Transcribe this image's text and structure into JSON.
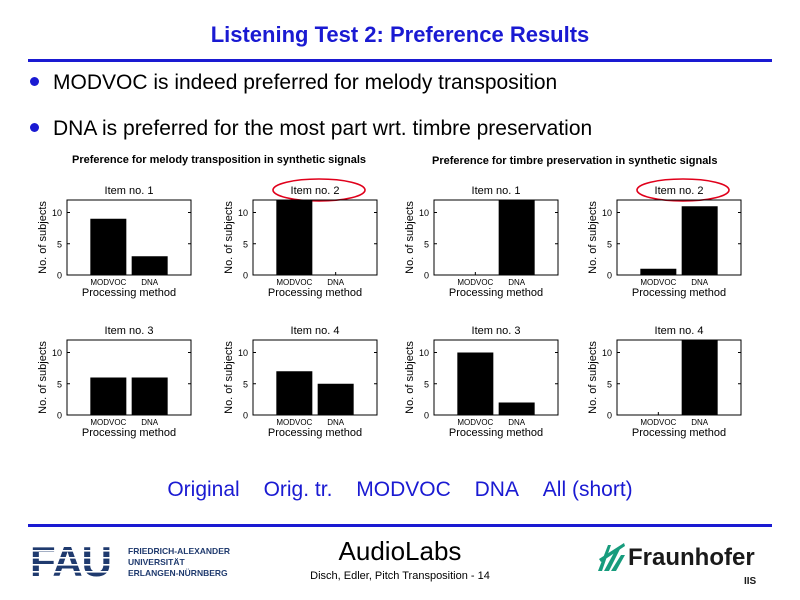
{
  "slide": {
    "title": "Listening Test 2: Preference Results",
    "bullets": [
      "MODVOC is indeed preferred for melody transposition",
      "DNA is preferred for the most part wrt. timbre preservation"
    ],
    "links": [
      "Original",
      "Orig. tr.",
      "MODVOC",
      "DNA",
      "All (short)"
    ],
    "brand": "AudioLabs",
    "footer": "Disch, Edler, Pitch Transposition - 14",
    "fau_logo": "FAU",
    "fau_lines": [
      "FRIEDRICH-ALEXANDER",
      "UNIVERSITÄT",
      "ERLANGEN-NÜRNBERG"
    ],
    "fraunhofer": "Fraunhofer",
    "iis": "IIS",
    "accent_color": "#1a1ad2",
    "highlight_color": "#e0001b"
  },
  "groups": [
    {
      "title": "Preference for melody transposition in synthetic signals"
    },
    {
      "title": "Preference for timbre preservation in synthetic signals"
    }
  ],
  "chart_data": [
    {
      "type": "bar",
      "group": 0,
      "title": "Item no. 1",
      "categories": [
        "MODVOC",
        "DNA"
      ],
      "values": [
        9,
        3
      ],
      "xlabel": "Processing method",
      "ylabel": "No. of subjects",
      "ylim": [
        0,
        12
      ],
      "yticks": [
        0,
        5,
        10
      ],
      "highlighted": false
    },
    {
      "type": "bar",
      "group": 0,
      "title": "Item no. 2",
      "categories": [
        "MODVOC",
        "DNA"
      ],
      "values": [
        12,
        0
      ],
      "xlabel": "Processing method",
      "ylabel": "No. of subjects",
      "ylim": [
        0,
        12
      ],
      "yticks": [
        0,
        5,
        10
      ],
      "highlighted": true
    },
    {
      "type": "bar",
      "group": 1,
      "title": "Item no. 1",
      "categories": [
        "MODVOC",
        "DNA"
      ],
      "values": [
        0,
        12
      ],
      "xlabel": "Processing method",
      "ylabel": "No. of subjects",
      "ylim": [
        0,
        12
      ],
      "yticks": [
        0,
        5,
        10
      ],
      "highlighted": false
    },
    {
      "type": "bar",
      "group": 1,
      "title": "Item no. 2",
      "categories": [
        "MODVOC",
        "DNA"
      ],
      "values": [
        1,
        11
      ],
      "xlabel": "Processing method",
      "ylabel": "No. of subjects",
      "ylim": [
        0,
        12
      ],
      "yticks": [
        0,
        5,
        10
      ],
      "highlighted": true
    },
    {
      "type": "bar",
      "group": 0,
      "title": "Item no. 3",
      "categories": [
        "MODVOC",
        "DNA"
      ],
      "values": [
        6,
        6
      ],
      "xlabel": "Processing method",
      "ylabel": "No. of subjects",
      "ylim": [
        0,
        12
      ],
      "yticks": [
        0,
        5,
        10
      ],
      "highlighted": false
    },
    {
      "type": "bar",
      "group": 0,
      "title": "Item no. 4",
      "categories": [
        "MODVOC",
        "DNA"
      ],
      "values": [
        7,
        5
      ],
      "xlabel": "Processing method",
      "ylabel": "No. of subjects",
      "ylim": [
        0,
        12
      ],
      "yticks": [
        0,
        5,
        10
      ],
      "highlighted": false
    },
    {
      "type": "bar",
      "group": 1,
      "title": "Item no. 3",
      "categories": [
        "MODVOC",
        "DNA"
      ],
      "values": [
        10,
        2
      ],
      "xlabel": "Processing method",
      "ylabel": "No. of subjects",
      "ylim": [
        0,
        12
      ],
      "yticks": [
        0,
        5,
        10
      ],
      "highlighted": false
    },
    {
      "type": "bar",
      "group": 1,
      "title": "Item no. 4",
      "categories": [
        "MODVOC",
        "DNA"
      ],
      "values": [
        0,
        12
      ],
      "xlabel": "Processing method",
      "ylabel": "No. of subjects",
      "ylim": [
        0,
        12
      ],
      "yticks": [
        0,
        5,
        10
      ],
      "highlighted": false
    }
  ]
}
